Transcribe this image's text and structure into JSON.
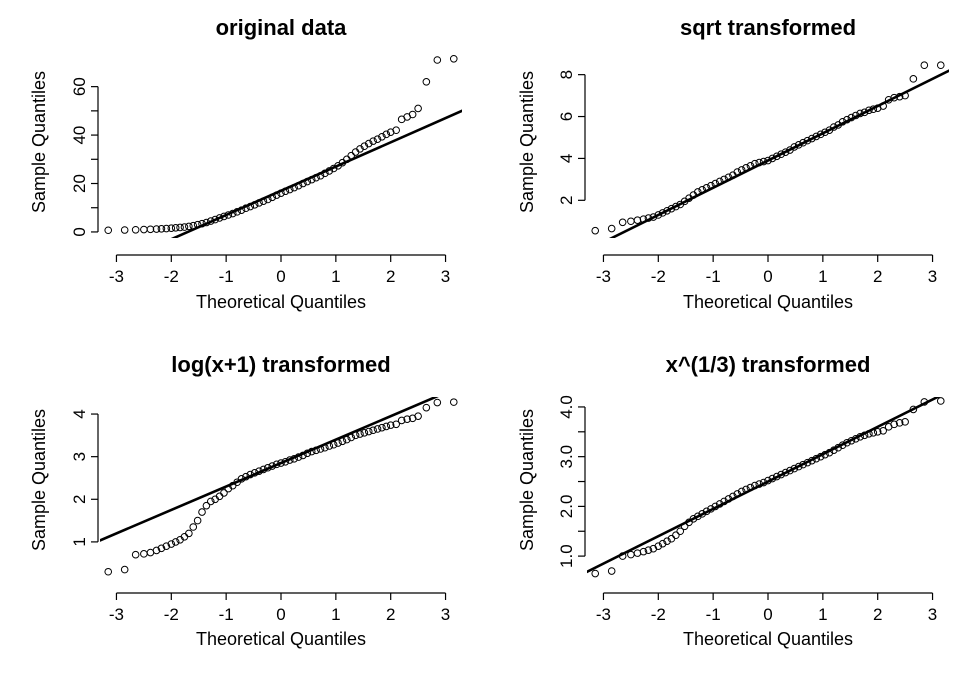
{
  "chart_data": [
    {
      "type": "scatter",
      "title": "original data",
      "xlabel": "Theoretical Quantiles",
      "ylabel": "Sample Quantiles",
      "xlim": [
        -3.3,
        3.3
      ],
      "ylim": [
        -2.5,
        71
      ],
      "xticks": [
        -3,
        -2,
        -1,
        0,
        1,
        2,
        3
      ],
      "xtick_labels": [
        "-3",
        "-2",
        "-1",
        "0",
        "1",
        "2",
        "3"
      ],
      "yticks": [
        0,
        20,
        40,
        60
      ],
      "ytick_labels": [
        "0",
        "20",
        "40",
        "60"
      ],
      "yminor": [
        10,
        30,
        50
      ],
      "line": {
        "intercept": 17,
        "slope": 10
      },
      "points": [
        [
          -3.15,
          0.7
        ],
        [
          -2.85,
          0.8
        ],
        [
          -2.65,
          0.9
        ],
        [
          -2.5,
          1.0
        ],
        [
          -2.38,
          1.1
        ],
        [
          -2.27,
          1.2
        ],
        [
          -2.18,
          1.3
        ],
        [
          -2.09,
          1.4
        ],
        [
          -2.0,
          1.55
        ],
        [
          -1.92,
          1.7
        ],
        [
          -1.84,
          1.85
        ],
        [
          -1.76,
          2.0
        ],
        [
          -1.68,
          2.3
        ],
        [
          -1.6,
          2.6
        ],
        [
          -1.52,
          3.0
        ],
        [
          -1.44,
          3.4
        ],
        [
          -1.36,
          3.9
        ],
        [
          -1.28,
          4.5
        ],
        [
          -1.2,
          5.1
        ],
        [
          -1.12,
          5.8
        ],
        [
          -1.04,
          6.4
        ],
        [
          -0.96,
          7.0
        ],
        [
          -0.88,
          7.6
        ],
        [
          -0.8,
          8.3
        ],
        [
          -0.72,
          9.0
        ],
        [
          -0.64,
          9.8
        ],
        [
          -0.56,
          10.5
        ],
        [
          -0.48,
          11.2
        ],
        [
          -0.4,
          12.0
        ],
        [
          -0.32,
          12.7
        ],
        [
          -0.24,
          13.4
        ],
        [
          -0.16,
          14.3
        ],
        [
          -0.08,
          15.2
        ],
        [
          0.0,
          16.0
        ],
        [
          0.08,
          16.8
        ],
        [
          0.16,
          17.5
        ],
        [
          0.24,
          18.3
        ],
        [
          0.32,
          19.1
        ],
        [
          0.4,
          20.0
        ],
        [
          0.48,
          20.8
        ],
        [
          0.56,
          21.6
        ],
        [
          0.64,
          22.4
        ],
        [
          0.72,
          23.2
        ],
        [
          0.8,
          24.2
        ],
        [
          0.88,
          25.2
        ],
        [
          0.96,
          26.2
        ],
        [
          1.04,
          27.3
        ],
        [
          1.12,
          28.6
        ],
        [
          1.2,
          30.0
        ],
        [
          1.28,
          31.5
        ],
        [
          1.36,
          33.0
        ],
        [
          1.44,
          34.3
        ],
        [
          1.52,
          35.4
        ],
        [
          1.6,
          36.5
        ],
        [
          1.68,
          37.5
        ],
        [
          1.76,
          38.3
        ],
        [
          1.84,
          39.3
        ],
        [
          1.92,
          40.3
        ],
        [
          2.0,
          41.2
        ],
        [
          2.1,
          42.0
        ],
        [
          2.2,
          46.5
        ],
        [
          2.3,
          47.5
        ],
        [
          2.4,
          48.5
        ],
        [
          2.5,
          51.0
        ],
        [
          2.65,
          62.0
        ],
        [
          2.85,
          71.0
        ],
        [
          3.15,
          71.5
        ]
      ]
    },
    {
      "type": "scatter",
      "title": "sqrt transformed",
      "xlabel": "Theoretical Quantiles",
      "ylabel": "Sample Quantiles",
      "xlim": [
        -3.3,
        3.3
      ],
      "ylim": [
        0.2,
        8.7
      ],
      "xticks": [
        -3,
        -2,
        -1,
        0,
        1,
        2,
        3
      ],
      "xtick_labels": [
        "-3",
        "-2",
        "-1",
        "0",
        "1",
        "2",
        "3"
      ],
      "yticks": [
        2,
        4,
        6,
        8
      ],
      "ytick_labels": [
        "2",
        "4",
        "6",
        "8"
      ],
      "line": {
        "intercept": 3.9,
        "slope": 1.3
      },
      "points": [
        [
          -3.15,
          0.55
        ],
        [
          -2.85,
          0.65
        ],
        [
          -2.65,
          0.95
        ],
        [
          -2.5,
          1.0
        ],
        [
          -2.38,
          1.05
        ],
        [
          -2.27,
          1.1
        ],
        [
          -2.18,
          1.15
        ],
        [
          -2.09,
          1.2
        ],
        [
          -2.0,
          1.3
        ],
        [
          -1.92,
          1.4
        ],
        [
          -1.84,
          1.5
        ],
        [
          -1.76,
          1.6
        ],
        [
          -1.68,
          1.7
        ],
        [
          -1.6,
          1.8
        ],
        [
          -1.52,
          1.95
        ],
        [
          -1.44,
          2.1
        ],
        [
          -1.36,
          2.25
        ],
        [
          -1.28,
          2.4
        ],
        [
          -1.2,
          2.5
        ],
        [
          -1.12,
          2.6
        ],
        [
          -1.04,
          2.7
        ],
        [
          -0.96,
          2.8
        ],
        [
          -0.88,
          2.9
        ],
        [
          -0.8,
          3.0
        ],
        [
          -0.72,
          3.1
        ],
        [
          -0.64,
          3.2
        ],
        [
          -0.56,
          3.35
        ],
        [
          -0.48,
          3.45
        ],
        [
          -0.4,
          3.55
        ],
        [
          -0.32,
          3.65
        ],
        [
          -0.24,
          3.75
        ],
        [
          -0.16,
          3.8
        ],
        [
          -0.08,
          3.85
        ],
        [
          0.0,
          3.9
        ],
        [
          0.08,
          4.0
        ],
        [
          0.16,
          4.1
        ],
        [
          0.24,
          4.2
        ],
        [
          0.32,
          4.3
        ],
        [
          0.4,
          4.4
        ],
        [
          0.48,
          4.55
        ],
        [
          0.56,
          4.65
        ],
        [
          0.64,
          4.75
        ],
        [
          0.72,
          4.85
        ],
        [
          0.8,
          4.95
        ],
        [
          0.88,
          5.05
        ],
        [
          0.96,
          5.15
        ],
        [
          1.04,
          5.25
        ],
        [
          1.12,
          5.35
        ],
        [
          1.2,
          5.5
        ],
        [
          1.28,
          5.6
        ],
        [
          1.36,
          5.75
        ],
        [
          1.44,
          5.85
        ],
        [
          1.52,
          5.95
        ],
        [
          1.6,
          6.05
        ],
        [
          1.68,
          6.15
        ],
        [
          1.76,
          6.2
        ],
        [
          1.84,
          6.3
        ],
        [
          1.92,
          6.35
        ],
        [
          2.0,
          6.4
        ],
        [
          2.1,
          6.5
        ],
        [
          2.2,
          6.8
        ],
        [
          2.3,
          6.9
        ],
        [
          2.4,
          6.95
        ],
        [
          2.5,
          7.0
        ],
        [
          2.65,
          7.8
        ],
        [
          2.85,
          8.45
        ],
        [
          3.15,
          8.45
        ]
      ]
    },
    {
      "type": "scatter",
      "title": "log(x+1) transformed",
      "xlabel": "Theoretical Quantiles",
      "ylabel": "Sample Quantiles",
      "xlim": [
        -3.3,
        3.3
      ],
      "ylim": [
        0.2,
        4.4
      ],
      "xticks": [
        -3,
        -2,
        -1,
        0,
        1,
        2,
        3
      ],
      "xtick_labels": [
        "-3",
        "-2",
        "-1",
        "0",
        "1",
        "2",
        "3"
      ],
      "yticks": [
        1,
        2,
        3,
        4
      ],
      "ytick_labels": [
        "1",
        "2",
        "3",
        "4"
      ],
      "line": {
        "intercept": 2.85,
        "slope": 0.55
      },
      "points": [
        [
          -3.15,
          0.3
        ],
        [
          -2.85,
          0.35
        ],
        [
          -2.65,
          0.7
        ],
        [
          -2.5,
          0.72
        ],
        [
          -2.38,
          0.75
        ],
        [
          -2.27,
          0.8
        ],
        [
          -2.18,
          0.85
        ],
        [
          -2.09,
          0.9
        ],
        [
          -2.0,
          0.95
        ],
        [
          -1.92,
          1.0
        ],
        [
          -1.84,
          1.05
        ],
        [
          -1.76,
          1.12
        ],
        [
          -1.68,
          1.2
        ],
        [
          -1.6,
          1.35
        ],
        [
          -1.52,
          1.5
        ],
        [
          -1.44,
          1.7
        ],
        [
          -1.36,
          1.85
        ],
        [
          -1.28,
          1.95
        ],
        [
          -1.2,
          2.0
        ],
        [
          -1.12,
          2.07
        ],
        [
          -1.04,
          2.15
        ],
        [
          -0.96,
          2.25
        ],
        [
          -0.88,
          2.32
        ],
        [
          -0.8,
          2.4
        ],
        [
          -0.72,
          2.48
        ],
        [
          -0.64,
          2.53
        ],
        [
          -0.56,
          2.58
        ],
        [
          -0.48,
          2.62
        ],
        [
          -0.4,
          2.66
        ],
        [
          -0.32,
          2.7
        ],
        [
          -0.24,
          2.74
        ],
        [
          -0.16,
          2.78
        ],
        [
          -0.08,
          2.82
        ],
        [
          0.0,
          2.85
        ],
        [
          0.08,
          2.88
        ],
        [
          0.16,
          2.92
        ],
        [
          0.24,
          2.95
        ],
        [
          0.32,
          2.99
        ],
        [
          0.4,
          3.03
        ],
        [
          0.48,
          3.08
        ],
        [
          0.56,
          3.12
        ],
        [
          0.64,
          3.15
        ],
        [
          0.72,
          3.18
        ],
        [
          0.8,
          3.21
        ],
        [
          0.88,
          3.25
        ],
        [
          0.96,
          3.28
        ],
        [
          1.04,
          3.32
        ],
        [
          1.12,
          3.36
        ],
        [
          1.2,
          3.4
        ],
        [
          1.28,
          3.45
        ],
        [
          1.36,
          3.5
        ],
        [
          1.44,
          3.53
        ],
        [
          1.52,
          3.56
        ],
        [
          1.6,
          3.59
        ],
        [
          1.68,
          3.62
        ],
        [
          1.76,
          3.65
        ],
        [
          1.84,
          3.68
        ],
        [
          1.92,
          3.71
        ],
        [
          2.0,
          3.74
        ],
        [
          2.1,
          3.76
        ],
        [
          2.2,
          3.85
        ],
        [
          2.3,
          3.88
        ],
        [
          2.4,
          3.9
        ],
        [
          2.5,
          3.95
        ],
        [
          2.65,
          4.15
        ],
        [
          2.85,
          4.27
        ],
        [
          3.15,
          4.28
        ]
      ]
    },
    {
      "type": "scatter",
      "title": "x^(1/3) transformed",
      "xlabel": "Theoretical Quantiles",
      "ylabel": "Sample Quantiles",
      "xlim": [
        -3.3,
        3.3
      ],
      "ylim": [
        0.6,
        4.2
      ],
      "xticks": [
        -3,
        -2,
        -1,
        0,
        1,
        2,
        3
      ],
      "xtick_labels": [
        "-3",
        "-2",
        "-1",
        "0",
        "1",
        "2",
        "3"
      ],
      "yticks": [
        1.0,
        2.0,
        3.0,
        4.0
      ],
      "ytick_labels": [
        "1.0",
        "2.0",
        "3.0",
        "4.0"
      ],
      "yminor": [
        1.5,
        2.5,
        3.5
      ],
      "line": {
        "intercept": 2.5,
        "slope": 0.55
      },
      "points": [
        [
          -3.15,
          0.65
        ],
        [
          -2.85,
          0.7
        ],
        [
          -2.65,
          1.0
        ],
        [
          -2.5,
          1.03
        ],
        [
          -2.38,
          1.06
        ],
        [
          -2.27,
          1.09
        ],
        [
          -2.18,
          1.12
        ],
        [
          -2.09,
          1.15
        ],
        [
          -2.0,
          1.2
        ],
        [
          -1.92,
          1.25
        ],
        [
          -1.84,
          1.3
        ],
        [
          -1.76,
          1.35
        ],
        [
          -1.68,
          1.42
        ],
        [
          -1.6,
          1.5
        ],
        [
          -1.52,
          1.6
        ],
        [
          -1.44,
          1.68
        ],
        [
          -1.36,
          1.75
        ],
        [
          -1.28,
          1.8
        ],
        [
          -1.2,
          1.85
        ],
        [
          -1.12,
          1.9
        ],
        [
          -1.04,
          1.95
        ],
        [
          -0.96,
          2.0
        ],
        [
          -0.88,
          2.05
        ],
        [
          -0.8,
          2.1
        ],
        [
          -0.72,
          2.15
        ],
        [
          -0.64,
          2.2
        ],
        [
          -0.56,
          2.25
        ],
        [
          -0.48,
          2.3
        ],
        [
          -0.4,
          2.34
        ],
        [
          -0.32,
          2.38
        ],
        [
          -0.24,
          2.42
        ],
        [
          -0.16,
          2.45
        ],
        [
          -0.08,
          2.48
        ],
        [
          0.0,
          2.52
        ],
        [
          0.08,
          2.56
        ],
        [
          0.16,
          2.6
        ],
        [
          0.24,
          2.64
        ],
        [
          0.32,
          2.68
        ],
        [
          0.4,
          2.72
        ],
        [
          0.48,
          2.76
        ],
        [
          0.56,
          2.8
        ],
        [
          0.64,
          2.84
        ],
        [
          0.72,
          2.88
        ],
        [
          0.8,
          2.92
        ],
        [
          0.88,
          2.96
        ],
        [
          0.96,
          3.0
        ],
        [
          1.04,
          3.04
        ],
        [
          1.12,
          3.08
        ],
        [
          1.2,
          3.13
        ],
        [
          1.28,
          3.18
        ],
        [
          1.36,
          3.23
        ],
        [
          1.44,
          3.28
        ],
        [
          1.52,
          3.32
        ],
        [
          1.6,
          3.36
        ],
        [
          1.68,
          3.4
        ],
        [
          1.76,
          3.43
        ],
        [
          1.84,
          3.46
        ],
        [
          1.92,
          3.48
        ],
        [
          2.0,
          3.5
        ],
        [
          2.1,
          3.52
        ],
        [
          2.2,
          3.6
        ],
        [
          2.3,
          3.65
        ],
        [
          2.4,
          3.68
        ],
        [
          2.5,
          3.7
        ],
        [
          2.65,
          3.95
        ],
        [
          2.85,
          4.1
        ],
        [
          3.15,
          4.12
        ]
      ]
    }
  ]
}
